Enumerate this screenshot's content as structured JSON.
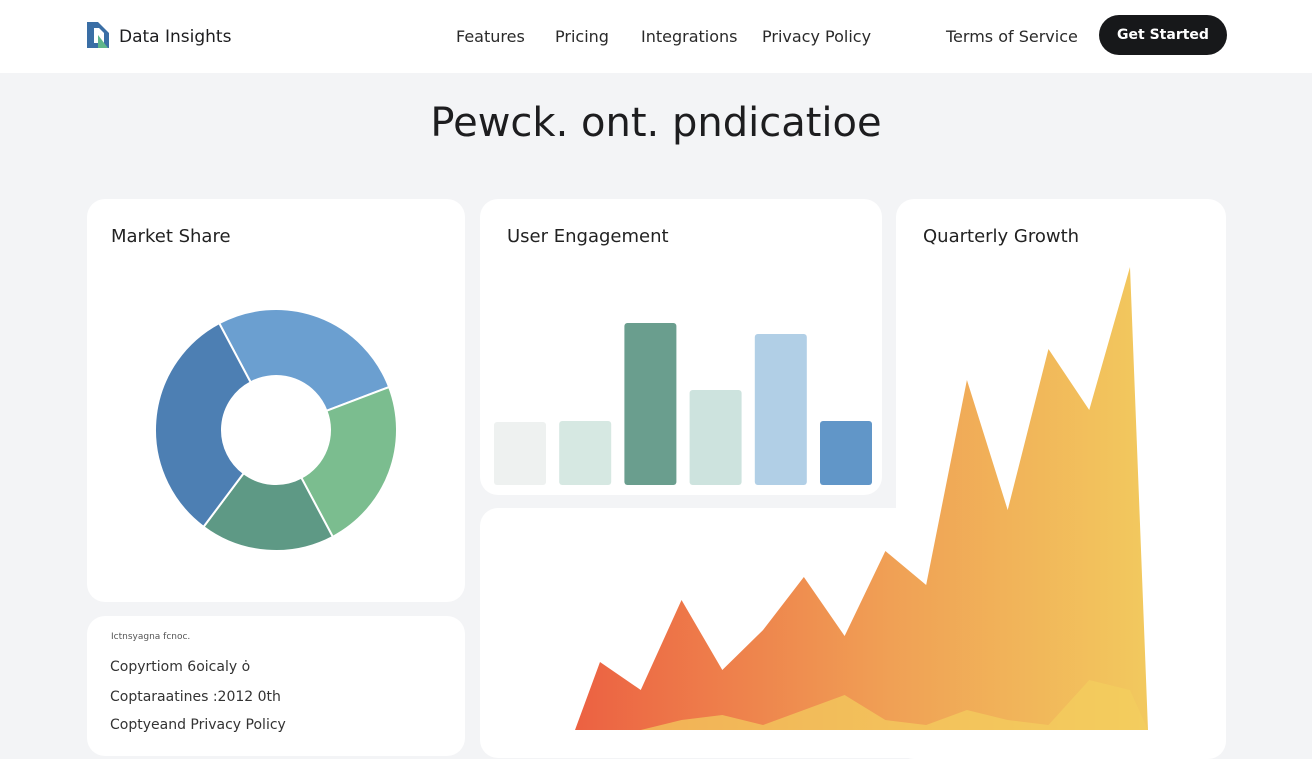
{
  "header": {
    "brand": "Data Insights",
    "links": [
      "Features",
      "Pricing",
      "Integrations",
      "Privacy Policy",
      "Terms of Service"
    ],
    "button": "Get Started"
  },
  "title": "Pewck. ont. pndicatioe",
  "chart_data": [
    {
      "type": "pie",
      "title": "Market Share",
      "values": [
        27,
        23,
        18,
        32
      ],
      "colors": [
        "#6b9fd0",
        "#7bbd8f",
        "#5e9985",
        "#4d7fb3"
      ]
    },
    {
      "type": "bar",
      "title": "User Engagement",
      "values": [
        63,
        64,
        162,
        95,
        151,
        64
      ],
      "colors": [
        "#eef1f0",
        "#d6e8e2",
        "#6a9e8e",
        "#cde3de",
        "#b1cfe6",
        "#6196c8"
      ]
    },
    {
      "type": "area",
      "title": "Quarterly Growth",
      "series": [
        {
          "color": "#ef6a45",
          "values": [
            68,
            40,
            130,
            60,
            100,
            153,
            94,
            179,
            145,
            350,
            220,
            381,
            320,
            463
          ]
        },
        {
          "color": "#f4cf5e",
          "values": [
            0,
            0,
            10,
            15,
            5,
            20,
            35,
            10,
            5,
            20,
            10,
            5,
            50,
            40
          ]
        }
      ]
    }
  ],
  "footer": {
    "heading": "Ictnsyagna fcnoc.",
    "lines": [
      "Copyrtiom 6oicaly ȯ",
      "Coptaraatines :2012 0th",
      "Coptyeand Privacy Policy"
    ]
  }
}
